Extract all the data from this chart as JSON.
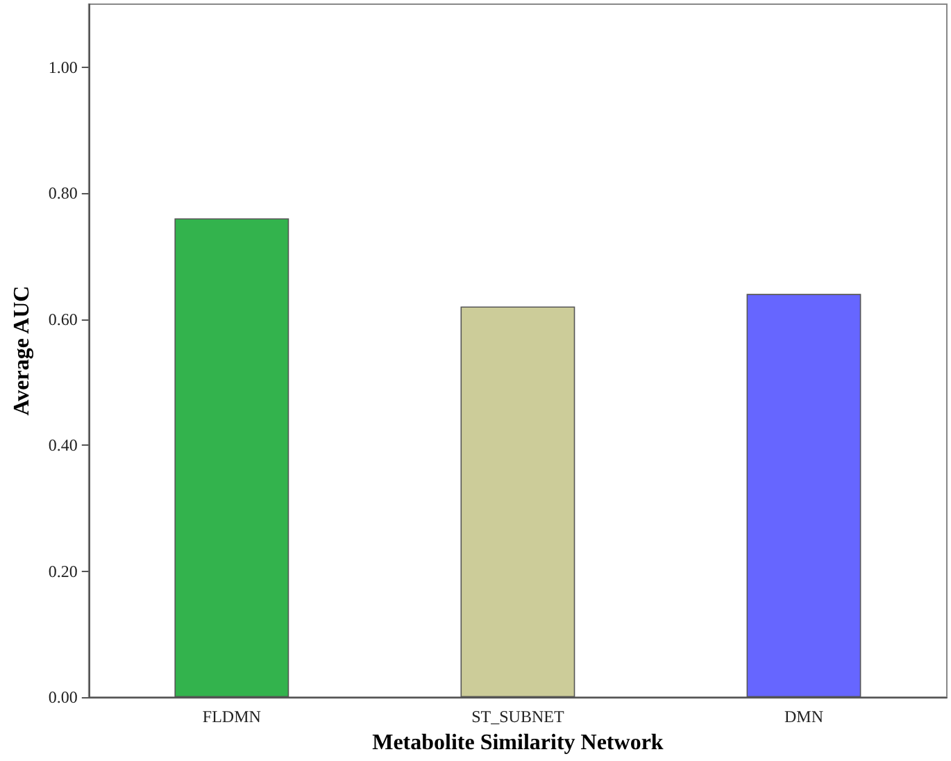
{
  "chart_data": {
    "type": "bar",
    "xlabel": "Metabolite Similarity Network",
    "ylabel": "Average AUC",
    "categories": [
      "FLDMN",
      "ST_SUBNET",
      "DMN"
    ],
    "values": [
      0.76,
      0.62,
      0.64
    ],
    "colors": [
      "#33b34d",
      "#cccc99",
      "#6666ff"
    ],
    "ylim": [
      0,
      1.1
    ],
    "yticks": [
      {
        "value": 0,
        "label": "0.00"
      },
      {
        "value": 0.2,
        "label": "0.20"
      },
      {
        "value": 0.4,
        "label": "0.40"
      },
      {
        "value": 0.6,
        "label": "0.60"
      },
      {
        "value": 0.8,
        "label": "0.80"
      },
      {
        "value": 1,
        "label": "1.00"
      }
    ],
    "grid": false
  }
}
